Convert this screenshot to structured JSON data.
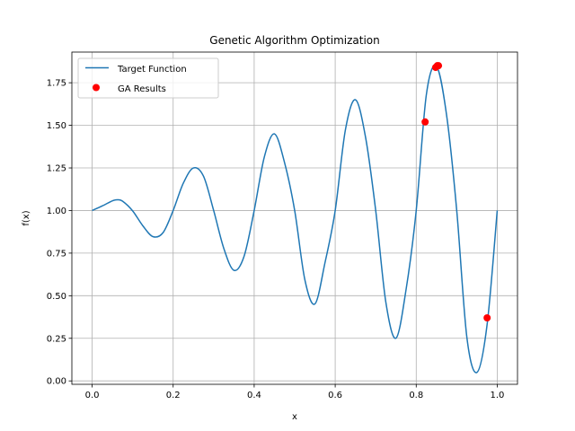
{
  "chart_data": {
    "type": "line",
    "title": "Genetic Algorithm Optimization",
    "xlabel": "x",
    "ylabel": "f(x)",
    "xlim": [
      -0.05,
      1.05
    ],
    "ylim": [
      -0.02,
      1.93
    ],
    "grid": true,
    "legend_position": "top-left",
    "x_ticks": [
      {
        "value": 0.0,
        "label": "0.0"
      },
      {
        "value": 0.2,
        "label": "0.2"
      },
      {
        "value": 0.4,
        "label": "0.4"
      },
      {
        "value": 0.6,
        "label": "0.6"
      },
      {
        "value": 0.8,
        "label": "0.8"
      },
      {
        "value": 1.0,
        "label": "1.0"
      }
    ],
    "y_ticks": [
      {
        "value": 0.0,
        "label": "0.00"
      },
      {
        "value": 0.25,
        "label": "0.25"
      },
      {
        "value": 0.5,
        "label": "0.50"
      },
      {
        "value": 0.75,
        "label": "0.75"
      },
      {
        "value": 1.0,
        "label": "1.00"
      },
      {
        "value": 1.25,
        "label": "1.25"
      },
      {
        "value": 1.5,
        "label": "1.50"
      },
      {
        "value": 1.75,
        "label": "1.75"
      }
    ],
    "series": [
      {
        "name": "Target Function",
        "kind": "line",
        "color": "#1f77b4",
        "x": [
          0,
          0.025,
          0.05,
          0.0625,
          0.075,
          0.1,
          0.125,
          0.15,
          0.175,
          0.2,
          0.225,
          0.25,
          0.275,
          0.3,
          0.325,
          0.35,
          0.375,
          0.4,
          0.425,
          0.45,
          0.475,
          0.5,
          0.525,
          0.55,
          0.575,
          0.6,
          0.625,
          0.65,
          0.675,
          0.7,
          0.725,
          0.75,
          0.775,
          0.8,
          0.825,
          0.85,
          0.875,
          0.9,
          0.925,
          0.95,
          0.975,
          1.0
        ],
        "y": [
          1.0,
          1.027,
          1.057,
          1.063,
          1.055,
          0.998,
          0.911,
          0.847,
          0.87,
          1.0,
          1.16,
          1.25,
          1.201,
          1.0,
          0.778,
          0.649,
          0.731,
          1.0,
          1.314,
          1.45,
          1.281,
          1.0,
          0.595,
          0.452,
          0.696,
          1.0,
          1.471,
          1.65,
          1.429,
          1.0,
          0.462,
          0.251,
          0.537,
          1.0,
          1.68,
          1.846,
          1.559,
          1.0,
          0.256,
          0.05,
          0.331,
          1.0
        ]
      },
      {
        "name": "GA Results",
        "kind": "scatter",
        "color": "#ff0000",
        "x": [
          0.822,
          0.848,
          0.852,
          0.855,
          0.975
        ],
        "y": [
          1.52,
          1.84,
          1.85,
          1.85,
          0.37
        ]
      }
    ]
  }
}
